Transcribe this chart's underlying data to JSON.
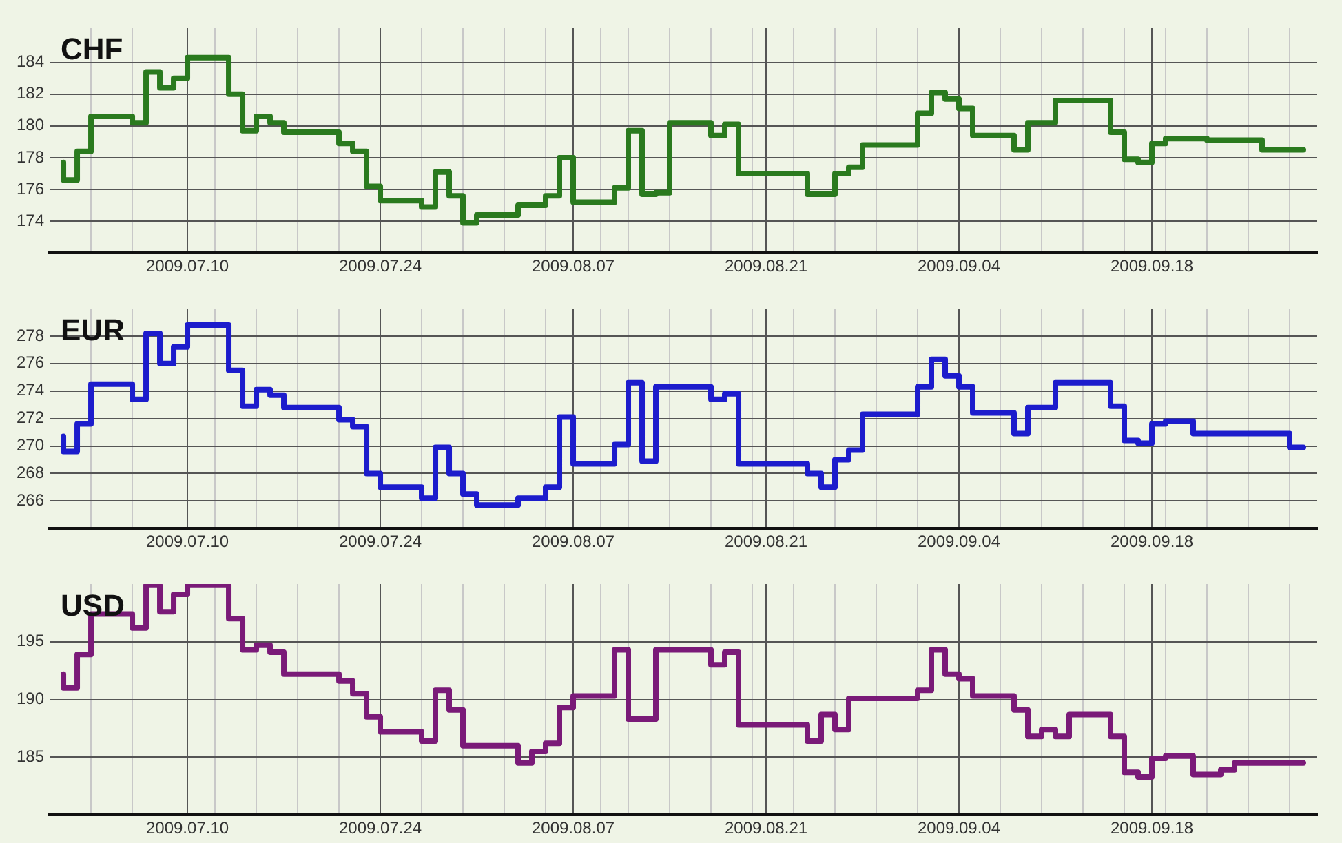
{
  "chart_data": [
    {
      "type": "step",
      "title": "CHF",
      "color": "#2a7a1e",
      "line_style": "solid",
      "marker": "none",
      "grid": true,
      "legend": false,
      "x": [
        "2009-07-01",
        "2009-07-02",
        "2009-07-03",
        "2009-07-06",
        "2009-07-07",
        "2009-07-08",
        "2009-07-09",
        "2009-07-10",
        "2009-07-13",
        "2009-07-14",
        "2009-07-15",
        "2009-07-16",
        "2009-07-17",
        "2009-07-21",
        "2009-07-22",
        "2009-07-23",
        "2009-07-24",
        "2009-07-27",
        "2009-07-28",
        "2009-07-29",
        "2009-07-30",
        "2009-07-31",
        "2009-08-03",
        "2009-08-05",
        "2009-08-06",
        "2009-08-07",
        "2009-08-10",
        "2009-08-11",
        "2009-08-12",
        "2009-08-13",
        "2009-08-14",
        "2009-08-17",
        "2009-08-18",
        "2009-08-19",
        "2009-08-24",
        "2009-08-26",
        "2009-08-27",
        "2009-08-28",
        "2009-09-01",
        "2009-09-02",
        "2009-09-03",
        "2009-09-04",
        "2009-09-05",
        "2009-09-08",
        "2009-09-09",
        "2009-09-11",
        "2009-09-15",
        "2009-09-16",
        "2009-09-17",
        "2009-09-18",
        "2009-09-19",
        "2009-09-22",
        "2009-09-26",
        "2009-09-29"
      ],
      "values": [
        177.7,
        176.6,
        178.4,
        180.6,
        180.2,
        183.4,
        182.4,
        183.0,
        184.3,
        182.0,
        179.7,
        180.6,
        180.2,
        179.6,
        178.9,
        178.4,
        176.2,
        175.3,
        174.9,
        177.1,
        175.6,
        173.9,
        174.4,
        175.0,
        175.6,
        178.0,
        175.2,
        176.1,
        179.7,
        175.7,
        175.8,
        180.2,
        179.4,
        180.1,
        177.0,
        175.7,
        177.0,
        177.4,
        178.8,
        180.8,
        182.1,
        181.7,
        181.1,
        179.4,
        178.5,
        180.2,
        181.6,
        179.6,
        177.9,
        177.7,
        178.9,
        179.2,
        179.1,
        178.5
      ],
      "xlim": [
        "2009-06-30",
        "2009-09-30"
      ],
      "xticks": [
        {
          "value": "2009-07-03",
          "label": null
        },
        {
          "value": "2009-07-06",
          "label": null
        },
        {
          "value": "2009-07-10",
          "label": "2009.07.10"
        },
        {
          "value": "2009-07-12",
          "label": null
        },
        {
          "value": "2009-07-15",
          "label": null
        },
        {
          "value": "2009-07-18",
          "label": null
        },
        {
          "value": "2009-07-21",
          "label": null
        },
        {
          "value": "2009-07-24",
          "label": "2009.07.24"
        },
        {
          "value": "2009-07-27",
          "label": null
        },
        {
          "value": "2009-07-30",
          "label": null
        },
        {
          "value": "2009-08-02",
          "label": null
        },
        {
          "value": "2009-08-05",
          "label": null
        },
        {
          "value": "2009-08-07",
          "label": "2009.08.07"
        },
        {
          "value": "2009-08-09",
          "label": null
        },
        {
          "value": "2009-08-11",
          "label": null
        },
        {
          "value": "2009-08-14",
          "label": null
        },
        {
          "value": "2009-08-17",
          "label": null
        },
        {
          "value": "2009-08-20",
          "label": null
        },
        {
          "value": "2009-08-21",
          "label": "2009.08.21"
        },
        {
          "value": "2009-08-23",
          "label": null
        },
        {
          "value": "2009-08-26",
          "label": null
        },
        {
          "value": "2009-08-29",
          "label": null
        },
        {
          "value": "2009-09-01",
          "label": null
        },
        {
          "value": "2009-09-04",
          "label": "2009.09.04"
        },
        {
          "value": "2009-09-07",
          "label": null
        },
        {
          "value": "2009-09-10",
          "label": null
        },
        {
          "value": "2009-09-13",
          "label": null
        },
        {
          "value": "2009-09-16",
          "label": null
        },
        {
          "value": "2009-09-18",
          "label": "2009.09.18"
        },
        {
          "value": "2009-09-19",
          "label": null
        },
        {
          "value": "2009-09-22",
          "label": null
        },
        {
          "value": "2009-09-25",
          "label": null
        },
        {
          "value": "2009-09-28",
          "label": null
        }
      ],
      "ylim": [
        172,
        186.2
      ],
      "yticks": [
        174,
        176,
        178,
        180,
        182,
        184
      ]
    },
    {
      "type": "step",
      "title": "EUR",
      "color": "#1c1ccc",
      "line_style": "solid",
      "marker": "none",
      "grid": true,
      "legend": false,
      "x": [
        "2009-07-01",
        "2009-07-02",
        "2009-07-03",
        "2009-07-06",
        "2009-07-07",
        "2009-07-08",
        "2009-07-09",
        "2009-07-10",
        "2009-07-13",
        "2009-07-14",
        "2009-07-15",
        "2009-07-16",
        "2009-07-17",
        "2009-07-21",
        "2009-07-22",
        "2009-07-23",
        "2009-07-24",
        "2009-07-27",
        "2009-07-28",
        "2009-07-29",
        "2009-07-30",
        "2009-07-31",
        "2009-08-03",
        "2009-08-05",
        "2009-08-06",
        "2009-08-07",
        "2009-08-10",
        "2009-08-11",
        "2009-08-12",
        "2009-08-13",
        "2009-08-17",
        "2009-08-18",
        "2009-08-19",
        "2009-08-24",
        "2009-08-25",
        "2009-08-26",
        "2009-08-27",
        "2009-08-28",
        "2009-09-01",
        "2009-09-02",
        "2009-09-03",
        "2009-09-04",
        "2009-09-05",
        "2009-09-08",
        "2009-09-09",
        "2009-09-11",
        "2009-09-15",
        "2009-09-16",
        "2009-09-17",
        "2009-09-18",
        "2009-09-19",
        "2009-09-21",
        "2009-09-23",
        "2009-09-28",
        "2009-09-29"
      ],
      "values": [
        270.7,
        269.6,
        271.6,
        274.5,
        273.4,
        278.2,
        276.0,
        277.2,
        278.8,
        275.5,
        272.9,
        274.1,
        273.7,
        272.8,
        271.9,
        271.4,
        268.0,
        267.0,
        266.2,
        269.9,
        268.0,
        266.5,
        265.7,
        266.2,
        267.0,
        272.1,
        268.7,
        270.1,
        274.6,
        268.9,
        274.3,
        273.4,
        273.8,
        268.7,
        268.0,
        267.0,
        269.0,
        269.7,
        272.3,
        274.3,
        276.3,
        275.1,
        274.3,
        272.4,
        270.9,
        272.8,
        274.6,
        272.9,
        270.4,
        270.2,
        271.6,
        271.8,
        270.9,
        270.9,
        269.9
      ],
      "xlim": [
        "2009-06-30",
        "2009-09-30"
      ],
      "xticks": [
        {
          "value": "2009-07-03",
          "label": null
        },
        {
          "value": "2009-07-06",
          "label": null
        },
        {
          "value": "2009-07-10",
          "label": "2009.07.10"
        },
        {
          "value": "2009-07-12",
          "label": null
        },
        {
          "value": "2009-07-15",
          "label": null
        },
        {
          "value": "2009-07-18",
          "label": null
        },
        {
          "value": "2009-07-21",
          "label": null
        },
        {
          "value": "2009-07-24",
          "label": "2009.07.24"
        },
        {
          "value": "2009-07-27",
          "label": null
        },
        {
          "value": "2009-07-30",
          "label": null
        },
        {
          "value": "2009-08-02",
          "label": null
        },
        {
          "value": "2009-08-05",
          "label": null
        },
        {
          "value": "2009-08-07",
          "label": "2009.08.07"
        },
        {
          "value": "2009-08-09",
          "label": null
        },
        {
          "value": "2009-08-11",
          "label": null
        },
        {
          "value": "2009-08-14",
          "label": null
        },
        {
          "value": "2009-08-17",
          "label": null
        },
        {
          "value": "2009-08-20",
          "label": null
        },
        {
          "value": "2009-08-21",
          "label": "2009.08.21"
        },
        {
          "value": "2009-08-23",
          "label": null
        },
        {
          "value": "2009-08-26",
          "label": null
        },
        {
          "value": "2009-08-29",
          "label": null
        },
        {
          "value": "2009-09-01",
          "label": null
        },
        {
          "value": "2009-09-04",
          "label": "2009.09.04"
        },
        {
          "value": "2009-09-07",
          "label": null
        },
        {
          "value": "2009-09-10",
          "label": null
        },
        {
          "value": "2009-09-13",
          "label": null
        },
        {
          "value": "2009-09-16",
          "label": null
        },
        {
          "value": "2009-09-18",
          "label": "2009.09.18"
        },
        {
          "value": "2009-09-19",
          "label": null
        },
        {
          "value": "2009-09-22",
          "label": null
        },
        {
          "value": "2009-09-25",
          "label": null
        },
        {
          "value": "2009-09-28",
          "label": null
        }
      ],
      "ylim": [
        264,
        280
      ],
      "yticks": [
        266,
        268,
        270,
        272,
        274,
        276,
        278
      ]
    },
    {
      "type": "step",
      "title": "USD",
      "color": "#7a1a78",
      "line_style": "solid",
      "marker": "none",
      "grid": true,
      "legend": false,
      "x": [
        "2009-07-01",
        "2009-07-02",
        "2009-07-03",
        "2009-07-06",
        "2009-07-07",
        "2009-07-08",
        "2009-07-09",
        "2009-07-10",
        "2009-07-13",
        "2009-07-14",
        "2009-07-15",
        "2009-07-16",
        "2009-07-17",
        "2009-07-21",
        "2009-07-22",
        "2009-07-23",
        "2009-07-24",
        "2009-07-27",
        "2009-07-28",
        "2009-07-29",
        "2009-07-30",
        "2009-08-03",
        "2009-08-04",
        "2009-08-05",
        "2009-08-06",
        "2009-08-07",
        "2009-08-10",
        "2009-08-11",
        "2009-08-13",
        "2009-08-17",
        "2009-08-18",
        "2009-08-19",
        "2009-08-24",
        "2009-08-25",
        "2009-08-26",
        "2009-08-27",
        "2009-09-01",
        "2009-09-02",
        "2009-09-03",
        "2009-09-04",
        "2009-09-05",
        "2009-09-08",
        "2009-09-09",
        "2009-09-10",
        "2009-09-11",
        "2009-09-12",
        "2009-09-15",
        "2009-09-16",
        "2009-09-17",
        "2009-09-18",
        "2009-09-19",
        "2009-09-21",
        "2009-09-23",
        "2009-09-24",
        "2009-09-25",
        "2009-09-29"
      ],
      "values": [
        192.2,
        191.0,
        193.9,
        197.4,
        196.2,
        199.9,
        197.6,
        199.1,
        199.9,
        197.0,
        194.3,
        194.7,
        194.1,
        192.2,
        191.6,
        190.5,
        188.5,
        187.2,
        186.4,
        190.8,
        189.1,
        186.0,
        184.5,
        185.5,
        186.2,
        189.3,
        190.3,
        194.3,
        188.3,
        194.3,
        193.0,
        194.1,
        187.8,
        186.4,
        188.7,
        187.4,
        190.1,
        190.8,
        194.3,
        192.2,
        191.8,
        190.3,
        189.1,
        186.8,
        187.4,
        186.8,
        188.7,
        186.8,
        183.7,
        183.3,
        184.9,
        185.1,
        183.5,
        183.9,
        184.5,
        184.5
      ],
      "xlim": [
        "2009-06-30",
        "2009-09-30"
      ],
      "xticks": [
        {
          "value": "2009-07-03",
          "label": null
        },
        {
          "value": "2009-07-06",
          "label": null
        },
        {
          "value": "2009-07-10",
          "label": "2009.07.10"
        },
        {
          "value": "2009-07-12",
          "label": null
        },
        {
          "value": "2009-07-15",
          "label": null
        },
        {
          "value": "2009-07-18",
          "label": null
        },
        {
          "value": "2009-07-21",
          "label": null
        },
        {
          "value": "2009-07-24",
          "label": "2009.07.24"
        },
        {
          "value": "2009-07-27",
          "label": null
        },
        {
          "value": "2009-07-30",
          "label": null
        },
        {
          "value": "2009-08-02",
          "label": null
        },
        {
          "value": "2009-08-05",
          "label": null
        },
        {
          "value": "2009-08-07",
          "label": "2009.08.07"
        },
        {
          "value": "2009-08-09",
          "label": null
        },
        {
          "value": "2009-08-11",
          "label": null
        },
        {
          "value": "2009-08-14",
          "label": null
        },
        {
          "value": "2009-08-17",
          "label": null
        },
        {
          "value": "2009-08-20",
          "label": null
        },
        {
          "value": "2009-08-21",
          "label": "2009.08.21"
        },
        {
          "value": "2009-08-23",
          "label": null
        },
        {
          "value": "2009-08-26",
          "label": null
        },
        {
          "value": "2009-08-29",
          "label": null
        },
        {
          "value": "2009-09-01",
          "label": null
        },
        {
          "value": "2009-09-04",
          "label": "2009.09.04"
        },
        {
          "value": "2009-09-07",
          "label": null
        },
        {
          "value": "2009-09-10",
          "label": null
        },
        {
          "value": "2009-09-13",
          "label": null
        },
        {
          "value": "2009-09-16",
          "label": null
        },
        {
          "value": "2009-09-18",
          "label": "2009.09.18"
        },
        {
          "value": "2009-09-19",
          "label": null
        },
        {
          "value": "2009-09-22",
          "label": null
        },
        {
          "value": "2009-09-25",
          "label": null
        },
        {
          "value": "2009-09-28",
          "label": null
        }
      ],
      "ylim": [
        180,
        200
      ],
      "yticks": [
        185,
        190,
        195
      ]
    }
  ]
}
